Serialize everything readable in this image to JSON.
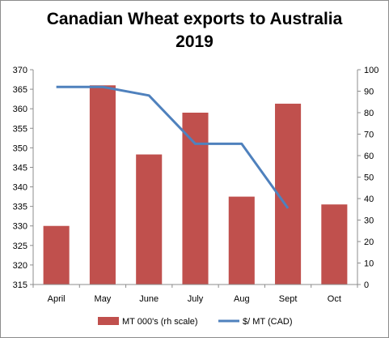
{
  "chart_data": {
    "type": "bar",
    "title": [
      "Canadian Wheat exports to Australia",
      "2019"
    ],
    "categories": [
      "April",
      "May",
      "June",
      "July",
      "Aug",
      "Sept",
      "Oct"
    ],
    "series": [
      {
        "name": "MT 000's (rh scale)",
        "type": "bar",
        "axis": "left",
        "color": "#c0504d",
        "values": [
          330,
          366,
          348.3,
          359,
          337.5,
          361.3,
          335.5
        ]
      },
      {
        "name": "$/ MT (CAD)",
        "type": "line",
        "axis": "right",
        "color": "#4f81bd",
        "values": [
          92,
          92,
          88,
          65.5,
          65.5,
          35.5,
          null
        ]
      }
    ],
    "left_axis": {
      "ylim": [
        315,
        370
      ],
      "ticks": [
        "370",
        "365",
        "360",
        "355",
        "350",
        "345",
        "340",
        "335",
        "330",
        "325",
        "320",
        "315"
      ]
    },
    "right_axis": {
      "ylim": [
        0,
        100
      ],
      "ticks": [
        "100",
        "90",
        "80",
        "70",
        "60",
        "50",
        "40",
        "30",
        "20",
        "10",
        "0"
      ]
    },
    "grid": false,
    "legend": "bottom"
  }
}
